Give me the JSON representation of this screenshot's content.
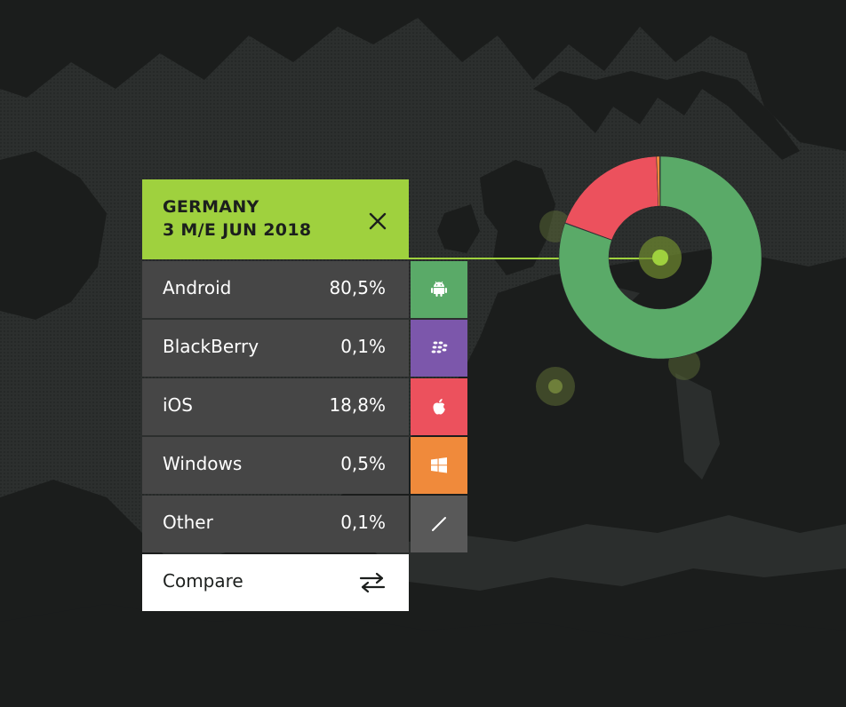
{
  "header": {
    "country": "GERMANY",
    "period": "3 M/E JUN 2018"
  },
  "os_shares": [
    {
      "label": "Android",
      "value": "80,5%",
      "color": "#5aaa68",
      "icon": "android-icon"
    },
    {
      "label": "BlackBerry",
      "value": "0,1%",
      "color": "#7c57ab",
      "icon": "blackberry-icon"
    },
    {
      "label": "iOS",
      "value": "18,8%",
      "color": "#ec515d",
      "icon": "apple-icon"
    },
    {
      "label": "Windows",
      "value": "0,5%",
      "color": "#f08a3b",
      "icon": "windows-icon"
    },
    {
      "label": "Other",
      "value": "0,1%",
      "color": "#595959",
      "icon": "slash-icon"
    }
  ],
  "compare": {
    "label": "Compare"
  },
  "chart_data": {
    "type": "pie",
    "variant": "donut",
    "categories": [
      "Android",
      "BlackBerry",
      "iOS",
      "Windows",
      "Other"
    ],
    "values": [
      80.5,
      0.1,
      18.8,
      0.5,
      0.1
    ],
    "colors": [
      "#5aaa68",
      "#7c57ab",
      "#ec515d",
      "#f08a3b",
      "#595959"
    ]
  },
  "colors": {
    "accent": "#9fd13e",
    "map_background": "#2b2e2d",
    "land": "#1c1e1d",
    "row_background": "#464646"
  }
}
